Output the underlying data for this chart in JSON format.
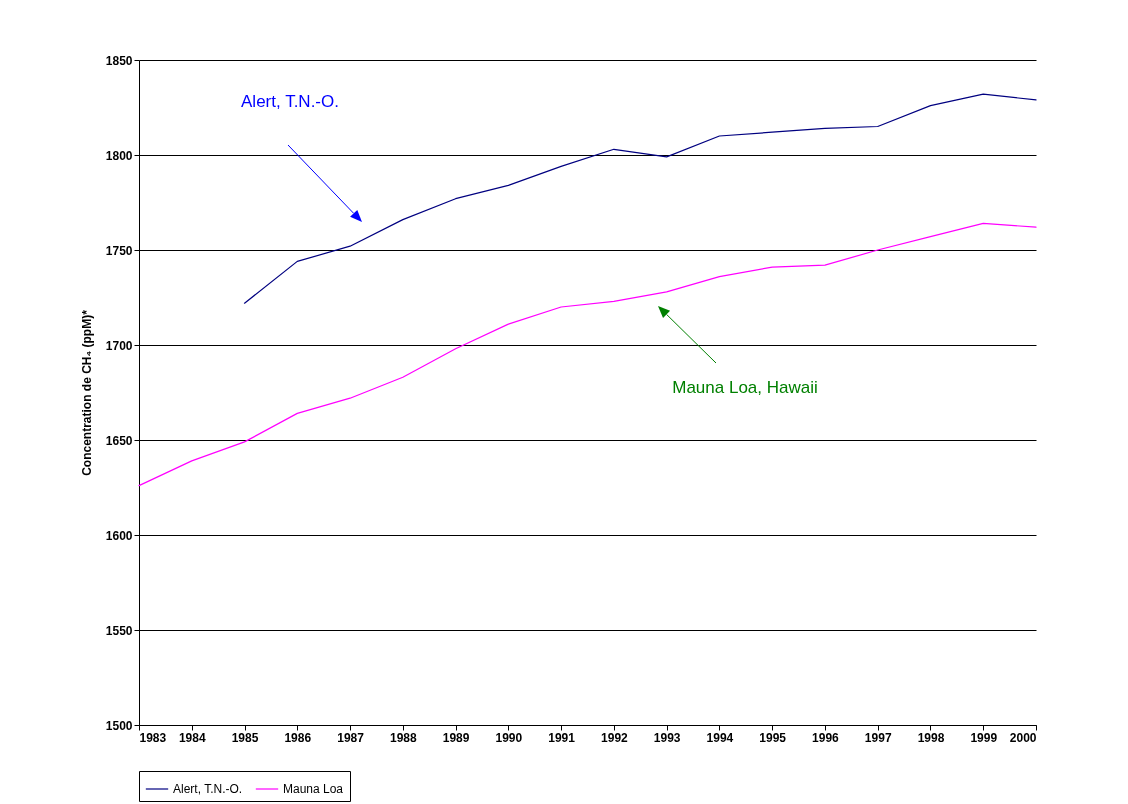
{
  "chart_data": {
    "type": "line",
    "ylabel": "Concentration de CH₄ (ppM)*",
    "x": [
      1983,
      1984,
      1985,
      1986,
      1987,
      1988,
      1989,
      1990,
      1991,
      1992,
      1993,
      1994,
      1995,
      1996,
      1997,
      1998,
      1999,
      2000
    ],
    "series": [
      {
        "name": "Alert, T.N.-O.",
        "color": "#000080",
        "values": [
          null,
          null,
          1722,
          1744,
          1752,
          1766,
          1777,
          1784,
          1794,
          1803,
          1799,
          1810,
          1812,
          1814,
          1815,
          1826,
          1832,
          1829
        ]
      },
      {
        "name": "Mauna Loa",
        "color": "#ff00ff",
        "values": [
          1626,
          1639,
          1649,
          1664,
          1672,
          1683,
          1698,
          1711,
          1720,
          1723,
          1728,
          1736,
          1741,
          1742,
          1750,
          1757,
          1764,
          1762
        ]
      }
    ],
    "xlim": [
      1983,
      2000
    ],
    "xticks": [
      1983,
      1984,
      1985,
      1986,
      1987,
      1988,
      1989,
      1990,
      1991,
      1992,
      1993,
      1994,
      1995,
      1996,
      1997,
      1998,
      1999,
      2000
    ],
    "ylim": [
      1500,
      1850
    ],
    "yticks": [
      1500,
      1550,
      1600,
      1650,
      1700,
      1750,
      1800,
      1850
    ],
    "grid": "y",
    "legend": "bottom",
    "marker": "none",
    "line_style": "solid",
    "annotations": [
      "Alert, T.N.-O.",
      "Mauna Loa, Hawaii"
    ]
  }
}
